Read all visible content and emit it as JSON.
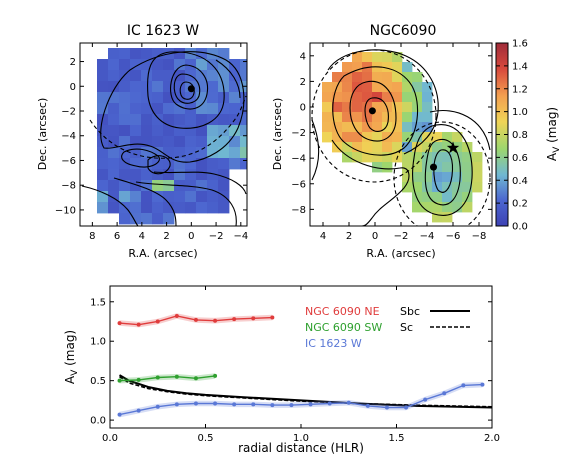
{
  "chart_data": [
    {
      "type": "heatmap",
      "title": "IC 1623 W",
      "xlabel": "R.A. (arcsec)",
      "ylabel": "Dec. (arcsec)",
      "xlim": [
        9,
        -4.5
      ],
      "ylim": [
        -11.3,
        3.5
      ],
      "xticks": [
        "8",
        "6",
        "4",
        "2",
        "0",
        "−2",
        "−4"
      ],
      "xtick_values": [
        8,
        6,
        4,
        2,
        0,
        -2,
        -4
      ],
      "yticks": [
        "2",
        "0",
        "−2",
        "−4",
        "−6",
        "−8",
        "−10"
      ],
      "ytick_values": [
        2,
        0,
        -2,
        -4,
        -6,
        -8,
        -10
      ],
      "nucleus": [
        0,
        -0.2
      ],
      "colormap": [
        "#3d42b4",
        "#4c66d0",
        "#70b8d2",
        "#9cd66e",
        "#f0d456",
        "#f3a050",
        "#d8483c",
        "#a02c3a"
      ],
      "value_range": [
        0.0,
        1.6
      ],
      "typical_value_range": [
        0.0,
        0.8
      ]
    },
    {
      "type": "heatmap",
      "title": "NGC6090",
      "xlabel": "R.A. (arcsec)",
      "ylabel": "Dec. (arcsec)",
      "xlim": [
        5,
        -9
      ],
      "ylim": [
        -9.3,
        5
      ],
      "xticks": [
        "4",
        "2",
        "0",
        "−2",
        "−4",
        "−6",
        "−8"
      ],
      "xtick_values": [
        4,
        2,
        0,
        -2,
        -4,
        -6,
        -8
      ],
      "yticks": [
        "4",
        "2",
        "0",
        "−2",
        "−4",
        "−6",
        "−8"
      ],
      "ytick_values": [
        4,
        2,
        0,
        -2,
        -4,
        -6,
        -8
      ],
      "nuclei": [
        [
          0.2,
          -0.3
        ],
        [
          -4.5,
          -4.7
        ]
      ],
      "star": [
        -6,
        -3.2
      ],
      "value_range": [
        0.0,
        1.6
      ],
      "colorbar": {
        "label": "A",
        "label_sub": "V",
        "label_unit": " (mag)",
        "ticks": [
          "0.0",
          "0.2",
          "0.4",
          "0.6",
          "0.8",
          "1.0",
          "1.2",
          "1.4",
          "1.6"
        ],
        "tick_values": [
          0,
          0.2,
          0.4,
          0.6,
          0.8,
          1.0,
          1.2,
          1.4,
          1.6
        ]
      }
    },
    {
      "type": "line",
      "xlabel": "radial distance (HLR)",
      "ylabel": "A",
      "ylabel_sub": "V",
      "ylabel_unit": " (mag)",
      "xlim": [
        0,
        2.0
      ],
      "ylim": [
        -0.1,
        1.7
      ],
      "xticks": [
        "0.0",
        "0.5",
        "1.0",
        "1.5",
        "2.0"
      ],
      "xtick_values": [
        0,
        0.5,
        1.0,
        1.5,
        2.0
      ],
      "yticks": [
        "0.0",
        "0.5",
        "1.0",
        "1.5"
      ],
      "ytick_values": [
        0,
        0.5,
        1.0,
        1.5
      ],
      "legend_position": "upper-right",
      "series": [
        {
          "name": "NGC 6090 NE",
          "color": "#e03c3c",
          "x": [
            0.05,
            0.15,
            0.25,
            0.35,
            0.45,
            0.55,
            0.65,
            0.75,
            0.85
          ],
          "y": [
            1.23,
            1.21,
            1.25,
            1.32,
            1.27,
            1.26,
            1.28,
            1.29,
            1.3
          ]
        },
        {
          "name": "NGC 6090 SW",
          "color": "#2ea02e",
          "x": [
            0.05,
            0.15,
            0.25,
            0.35,
            0.45,
            0.55
          ],
          "y": [
            0.5,
            0.51,
            0.54,
            0.55,
            0.53,
            0.56
          ]
        },
        {
          "name": "IC 1623 W",
          "color": "#5a78d6",
          "x": [
            0.05,
            0.15,
            0.25,
            0.35,
            0.45,
            0.55,
            0.65,
            0.75,
            0.85,
            0.95,
            1.05,
            1.15,
            1.25,
            1.35,
            1.45,
            1.55,
            1.65,
            1.75,
            1.85,
            1.95
          ],
          "y": [
            0.07,
            0.12,
            0.17,
            0.2,
            0.21,
            0.21,
            0.2,
            0.2,
            0.19,
            0.19,
            0.2,
            0.21,
            0.22,
            0.18,
            0.16,
            0.16,
            0.26,
            0.34,
            0.44,
            0.45
          ]
        }
      ],
      "model_curves": [
        {
          "name": "Sbc",
          "style": "solid",
          "x": [
            0.05,
            0.1,
            0.2,
            0.3,
            0.4,
            0.5,
            0.7,
            1.0,
            1.3,
            1.6,
            2.0
          ],
          "y": [
            0.57,
            0.5,
            0.42,
            0.37,
            0.34,
            0.32,
            0.29,
            0.25,
            0.21,
            0.18,
            0.16
          ]
        },
        {
          "name": "Sc",
          "style": "dashed",
          "x": [
            0.05,
            0.1,
            0.2,
            0.3,
            0.4,
            0.5,
            0.7,
            1.0,
            1.3,
            1.6,
            2.0
          ],
          "y": [
            0.55,
            0.47,
            0.4,
            0.36,
            0.33,
            0.31,
            0.28,
            0.24,
            0.21,
            0.19,
            0.17
          ]
        }
      ]
    }
  ]
}
